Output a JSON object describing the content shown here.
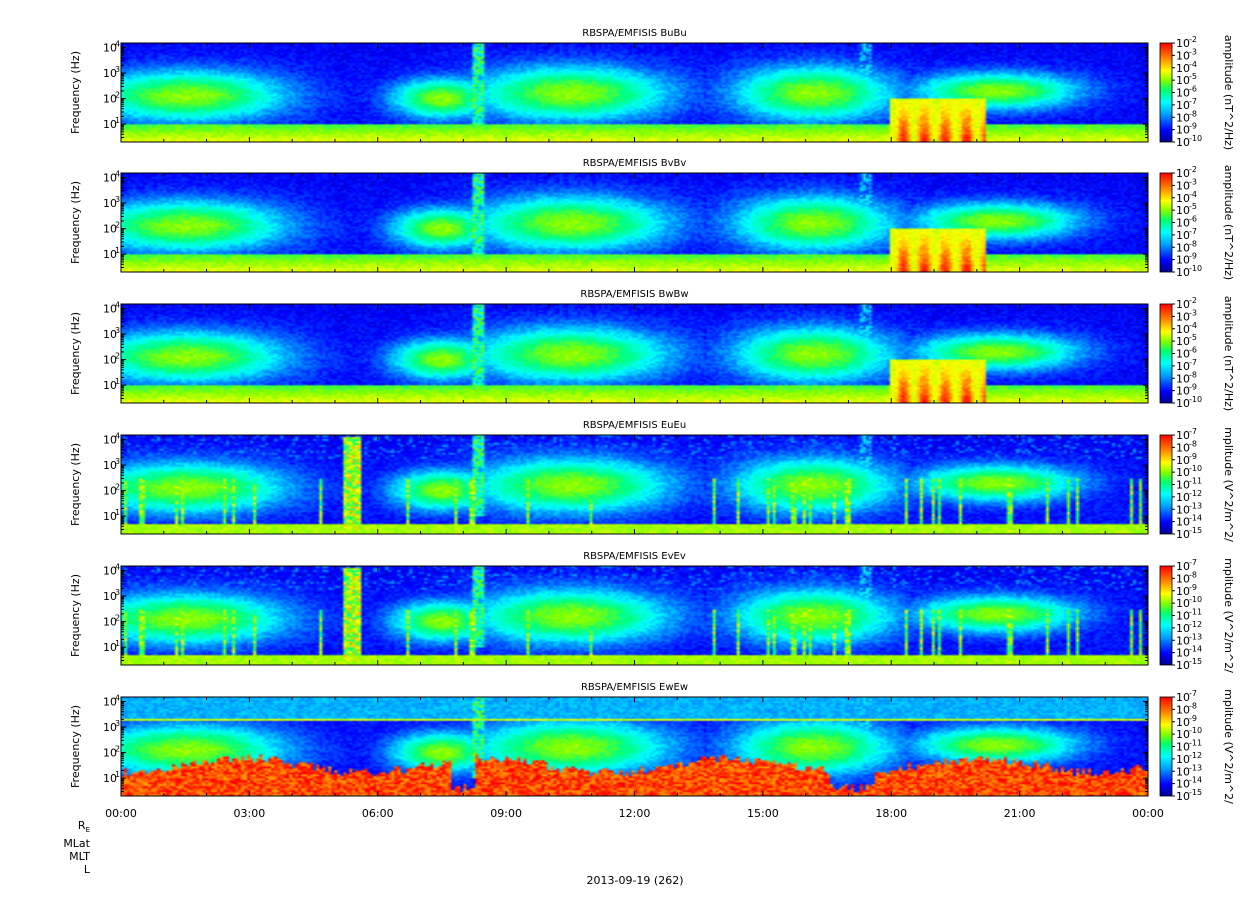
{
  "chart_data": {
    "type": "heatmap",
    "date_label": "2013-09-19 (262)",
    "x_tick_labels": [
      "00:00",
      "03:00",
      "06:00",
      "09:00",
      "12:00",
      "15:00",
      "18:00",
      "21:00",
      "00:00"
    ],
    "x_range_hours": [
      0,
      24
    ],
    "ephemeris_labels": [
      "R",
      "MLat",
      "MLT",
      "L"
    ],
    "ephemeris_subscript": "E",
    "panels": [
      {
        "title": "RBSPA/EMFISIS  BuBu",
        "ylabel": "Frequency (Hz)",
        "ylim": [
          2,
          15000
        ],
        "yscale": "log",
        "y_ticks": [
          {
            "base": "10",
            "exp": "1"
          },
          {
            "base": "10",
            "exp": "2"
          },
          {
            "base": "10",
            "exp": "3"
          },
          {
            "base": "10",
            "exp": "4"
          }
        ],
        "colorbar_label": "amplitude (nT^2/Hz)",
        "colorbar_exponents": [
          "-2",
          "-3",
          "-4",
          "-5",
          "-6",
          "-7",
          "-8",
          "-9",
          "-10"
        ]
      },
      {
        "title": "RBSPA/EMFISIS  BvBv",
        "ylabel": "Frequency (Hz)",
        "ylim": [
          2,
          15000
        ],
        "yscale": "log",
        "y_ticks": [
          {
            "base": "10",
            "exp": "1"
          },
          {
            "base": "10",
            "exp": "2"
          },
          {
            "base": "10",
            "exp": "3"
          },
          {
            "base": "10",
            "exp": "4"
          }
        ],
        "colorbar_label": "amplitude (nT^2/Hz)",
        "colorbar_exponents": [
          "-2",
          "-3",
          "-4",
          "-5",
          "-6",
          "-7",
          "-8",
          "-9",
          "-10"
        ]
      },
      {
        "title": "RBSPA/EMFISIS  BwBw",
        "ylabel": "Frequency (Hz)",
        "ylim": [
          2,
          15000
        ],
        "yscale": "log",
        "y_ticks": [
          {
            "base": "10",
            "exp": "1"
          },
          {
            "base": "10",
            "exp": "2"
          },
          {
            "base": "10",
            "exp": "3"
          },
          {
            "base": "10",
            "exp": "4"
          }
        ],
        "colorbar_label": "amplitude (nT^2/Hz)",
        "colorbar_exponents": [
          "-2",
          "-3",
          "-4",
          "-5",
          "-6",
          "-7",
          "-8",
          "-9",
          "-10"
        ]
      },
      {
        "title": "RBSPA/EMFISIS  EuEu",
        "ylabel": "Frequency (Hz)",
        "ylim": [
          2,
          15000
        ],
        "yscale": "log",
        "y_ticks": [
          {
            "base": "10",
            "exp": "1"
          },
          {
            "base": "10",
            "exp": "2"
          },
          {
            "base": "10",
            "exp": "3"
          },
          {
            "base": "10",
            "exp": "4"
          }
        ],
        "colorbar_label": "mplitude (V^2/m^2/",
        "colorbar_exponents": [
          "-7",
          "-8",
          "-9",
          "-10",
          "-11",
          "-12",
          "-13",
          "-14",
          "-15"
        ]
      },
      {
        "title": "RBSPA/EMFISIS  EvEv",
        "ylabel": "Frequency (Hz)",
        "ylim": [
          2,
          15000
        ],
        "yscale": "log",
        "y_ticks": [
          {
            "base": "10",
            "exp": "1"
          },
          {
            "base": "10",
            "exp": "2"
          },
          {
            "base": "10",
            "exp": "3"
          },
          {
            "base": "10",
            "exp": "4"
          }
        ],
        "colorbar_label": "mplitude (V^2/m^2/",
        "colorbar_exponents": [
          "-7",
          "-8",
          "-9",
          "-10",
          "-11",
          "-12",
          "-13",
          "-14",
          "-15"
        ]
      },
      {
        "title": "RBSPA/EMFISIS  EwEw",
        "ylabel": "Frequency (Hz)",
        "ylim": [
          2,
          15000
        ],
        "yscale": "log",
        "y_ticks": [
          {
            "base": "10",
            "exp": "1"
          },
          {
            "base": "10",
            "exp": "2"
          },
          {
            "base": "10",
            "exp": "3"
          },
          {
            "base": "10",
            "exp": "4"
          }
        ],
        "colorbar_label": "mplitude (V^2/m^2/",
        "colorbar_exponents": [
          "-7",
          "-8",
          "-9",
          "-10",
          "-11",
          "-12",
          "-13",
          "-14",
          "-15"
        ]
      }
    ],
    "colormap": [
      "#000080",
      "#0000ff",
      "#0080ff",
      "#00ffff",
      "#00ff80",
      "#80ff00",
      "#ffff00",
      "#ff8000",
      "#ff0000"
    ],
    "grid": false
  }
}
